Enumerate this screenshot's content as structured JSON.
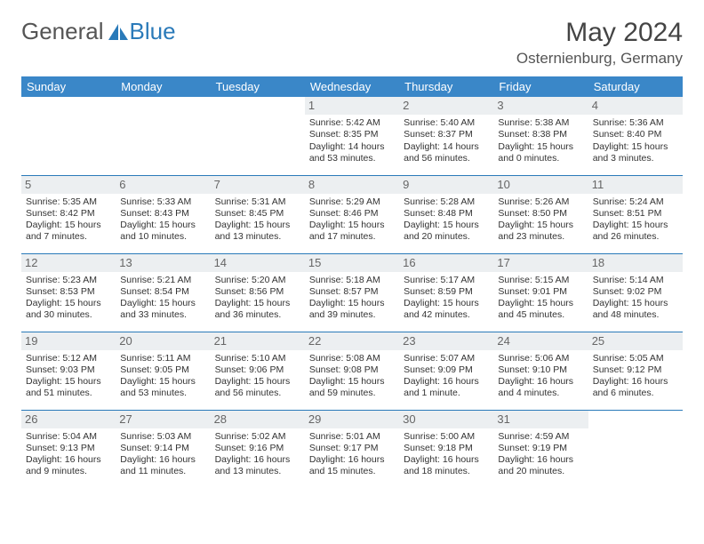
{
  "brand": {
    "name_a": "General",
    "name_b": "Blue"
  },
  "title": "May 2024",
  "location": "Osternienburg, Germany",
  "colors": {
    "header_bg": "#3a87c8",
    "border": "#2a7ab9",
    "daynum_bg": "#eceff1",
    "text": "#333333",
    "muted_text": "#666666",
    "bg": "#ffffff"
  },
  "typography": {
    "title_fontsize": 30,
    "location_fontsize": 17,
    "weekday_fontsize": 13,
    "cell_fontsize": 10.5
  },
  "weekdays": [
    "Sunday",
    "Monday",
    "Tuesday",
    "Wednesday",
    "Thursday",
    "Friday",
    "Saturday"
  ],
  "weeks": [
    [
      {
        "day": "",
        "sunrise": "",
        "sunset": "",
        "daylight": ""
      },
      {
        "day": "",
        "sunrise": "",
        "sunset": "",
        "daylight": ""
      },
      {
        "day": "",
        "sunrise": "",
        "sunset": "",
        "daylight": ""
      },
      {
        "day": "1",
        "sunrise": "Sunrise: 5:42 AM",
        "sunset": "Sunset: 8:35 PM",
        "daylight": "Daylight: 14 hours and 53 minutes."
      },
      {
        "day": "2",
        "sunrise": "Sunrise: 5:40 AM",
        "sunset": "Sunset: 8:37 PM",
        "daylight": "Daylight: 14 hours and 56 minutes."
      },
      {
        "day": "3",
        "sunrise": "Sunrise: 5:38 AM",
        "sunset": "Sunset: 8:38 PM",
        "daylight": "Daylight: 15 hours and 0 minutes."
      },
      {
        "day": "4",
        "sunrise": "Sunrise: 5:36 AM",
        "sunset": "Sunset: 8:40 PM",
        "daylight": "Daylight: 15 hours and 3 minutes."
      }
    ],
    [
      {
        "day": "5",
        "sunrise": "Sunrise: 5:35 AM",
        "sunset": "Sunset: 8:42 PM",
        "daylight": "Daylight: 15 hours and 7 minutes."
      },
      {
        "day": "6",
        "sunrise": "Sunrise: 5:33 AM",
        "sunset": "Sunset: 8:43 PM",
        "daylight": "Daylight: 15 hours and 10 minutes."
      },
      {
        "day": "7",
        "sunrise": "Sunrise: 5:31 AM",
        "sunset": "Sunset: 8:45 PM",
        "daylight": "Daylight: 15 hours and 13 minutes."
      },
      {
        "day": "8",
        "sunrise": "Sunrise: 5:29 AM",
        "sunset": "Sunset: 8:46 PM",
        "daylight": "Daylight: 15 hours and 17 minutes."
      },
      {
        "day": "9",
        "sunrise": "Sunrise: 5:28 AM",
        "sunset": "Sunset: 8:48 PM",
        "daylight": "Daylight: 15 hours and 20 minutes."
      },
      {
        "day": "10",
        "sunrise": "Sunrise: 5:26 AM",
        "sunset": "Sunset: 8:50 PM",
        "daylight": "Daylight: 15 hours and 23 minutes."
      },
      {
        "day": "11",
        "sunrise": "Sunrise: 5:24 AM",
        "sunset": "Sunset: 8:51 PM",
        "daylight": "Daylight: 15 hours and 26 minutes."
      }
    ],
    [
      {
        "day": "12",
        "sunrise": "Sunrise: 5:23 AM",
        "sunset": "Sunset: 8:53 PM",
        "daylight": "Daylight: 15 hours and 30 minutes."
      },
      {
        "day": "13",
        "sunrise": "Sunrise: 5:21 AM",
        "sunset": "Sunset: 8:54 PM",
        "daylight": "Daylight: 15 hours and 33 minutes."
      },
      {
        "day": "14",
        "sunrise": "Sunrise: 5:20 AM",
        "sunset": "Sunset: 8:56 PM",
        "daylight": "Daylight: 15 hours and 36 minutes."
      },
      {
        "day": "15",
        "sunrise": "Sunrise: 5:18 AM",
        "sunset": "Sunset: 8:57 PM",
        "daylight": "Daylight: 15 hours and 39 minutes."
      },
      {
        "day": "16",
        "sunrise": "Sunrise: 5:17 AM",
        "sunset": "Sunset: 8:59 PM",
        "daylight": "Daylight: 15 hours and 42 minutes."
      },
      {
        "day": "17",
        "sunrise": "Sunrise: 5:15 AM",
        "sunset": "Sunset: 9:01 PM",
        "daylight": "Daylight: 15 hours and 45 minutes."
      },
      {
        "day": "18",
        "sunrise": "Sunrise: 5:14 AM",
        "sunset": "Sunset: 9:02 PM",
        "daylight": "Daylight: 15 hours and 48 minutes."
      }
    ],
    [
      {
        "day": "19",
        "sunrise": "Sunrise: 5:12 AM",
        "sunset": "Sunset: 9:03 PM",
        "daylight": "Daylight: 15 hours and 51 minutes."
      },
      {
        "day": "20",
        "sunrise": "Sunrise: 5:11 AM",
        "sunset": "Sunset: 9:05 PM",
        "daylight": "Daylight: 15 hours and 53 minutes."
      },
      {
        "day": "21",
        "sunrise": "Sunrise: 5:10 AM",
        "sunset": "Sunset: 9:06 PM",
        "daylight": "Daylight: 15 hours and 56 minutes."
      },
      {
        "day": "22",
        "sunrise": "Sunrise: 5:08 AM",
        "sunset": "Sunset: 9:08 PM",
        "daylight": "Daylight: 15 hours and 59 minutes."
      },
      {
        "day": "23",
        "sunrise": "Sunrise: 5:07 AM",
        "sunset": "Sunset: 9:09 PM",
        "daylight": "Daylight: 16 hours and 1 minute."
      },
      {
        "day": "24",
        "sunrise": "Sunrise: 5:06 AM",
        "sunset": "Sunset: 9:10 PM",
        "daylight": "Daylight: 16 hours and 4 minutes."
      },
      {
        "day": "25",
        "sunrise": "Sunrise: 5:05 AM",
        "sunset": "Sunset: 9:12 PM",
        "daylight": "Daylight: 16 hours and 6 minutes."
      }
    ],
    [
      {
        "day": "26",
        "sunrise": "Sunrise: 5:04 AM",
        "sunset": "Sunset: 9:13 PM",
        "daylight": "Daylight: 16 hours and 9 minutes."
      },
      {
        "day": "27",
        "sunrise": "Sunrise: 5:03 AM",
        "sunset": "Sunset: 9:14 PM",
        "daylight": "Daylight: 16 hours and 11 minutes."
      },
      {
        "day": "28",
        "sunrise": "Sunrise: 5:02 AM",
        "sunset": "Sunset: 9:16 PM",
        "daylight": "Daylight: 16 hours and 13 minutes."
      },
      {
        "day": "29",
        "sunrise": "Sunrise: 5:01 AM",
        "sunset": "Sunset: 9:17 PM",
        "daylight": "Daylight: 16 hours and 15 minutes."
      },
      {
        "day": "30",
        "sunrise": "Sunrise: 5:00 AM",
        "sunset": "Sunset: 9:18 PM",
        "daylight": "Daylight: 16 hours and 18 minutes."
      },
      {
        "day": "31",
        "sunrise": "Sunrise: 4:59 AM",
        "sunset": "Sunset: 9:19 PM",
        "daylight": "Daylight: 16 hours and 20 minutes."
      },
      {
        "day": "",
        "sunrise": "",
        "sunset": "",
        "daylight": ""
      }
    ]
  ]
}
